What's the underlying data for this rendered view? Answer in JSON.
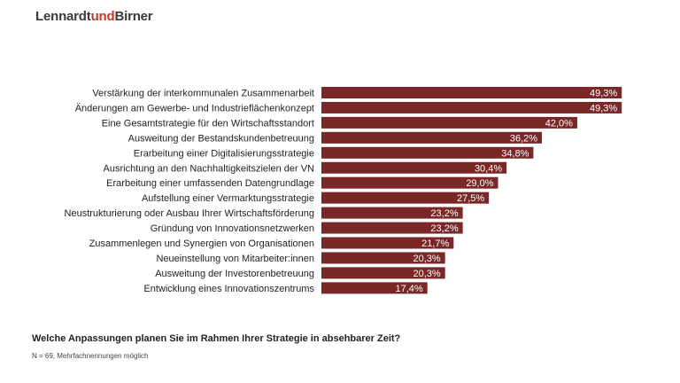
{
  "brand": {
    "part1": "Lennardt",
    "part2": "und",
    "part3": "Birner"
  },
  "colors": {
    "bar": "#7a2727",
    "brand_accent": "#c0392b",
    "text": "#222222"
  },
  "footer": {
    "question": "Welche Anpassungen planen Sie im Rahmen Ihrer Strategie in absehbarer Zeit?",
    "note": "N = 69, Mehrfachnennungen möglich"
  },
  "chart_data": {
    "type": "bar",
    "orientation": "horizontal",
    "categories": [
      "Verstärkung der interkommunalen Zusammenarbeit",
      "Änderungen am Gewerbe- und Industrieflächenkonzept",
      "Eine Gesamtstrategie für den Wirtschaftsstandort",
      "Ausweitung der Bestandskundenbetreuung",
      "Erarbeitung einer Digitalisierungsstrategie",
      "Ausrichtung an den Nachhaltigkeitszielen der VN",
      "Erarbeitung einer umfassenden Datengrundlage",
      "Aufstellung einer Vermarktungsstrategie",
      "Neustrukturierung oder Ausbau Ihrer Wirtschaftsförderung",
      "Gründung von Innovationsnetzwerken",
      "Zusammenlegen und Synergien von Organisationen",
      "Neueinstellung von Mitarbeiter:innen",
      "Ausweitung der Investorenbetreuung",
      "Entwicklung eines Innovationszentrums"
    ],
    "values": [
      49.3,
      49.3,
      42.0,
      36.2,
      34.8,
      30.4,
      29.0,
      27.5,
      23.2,
      23.2,
      21.7,
      20.3,
      20.3,
      17.4
    ],
    "value_labels": [
      "49,3%",
      "49,3%",
      "42,0%",
      "36,2%",
      "34,8%",
      "30,4%",
      "29,0%",
      "27,5%",
      "23,2%",
      "23,2%",
      "21,7%",
      "20,3%",
      "20,3%",
      "17,4%"
    ],
    "unit": "%",
    "grid": false,
    "legend": "none"
  }
}
